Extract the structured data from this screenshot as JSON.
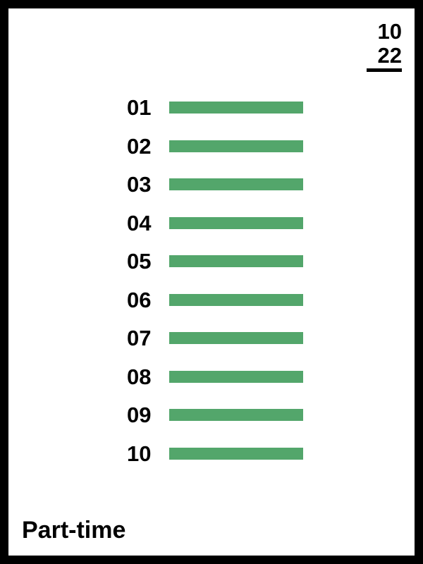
{
  "counter": {
    "current": "10",
    "total": "22"
  },
  "bar_color": "#53a66b",
  "items": [
    {
      "label": "01"
    },
    {
      "label": "02"
    },
    {
      "label": "03"
    },
    {
      "label": "04"
    },
    {
      "label": "05"
    },
    {
      "label": "06"
    },
    {
      "label": "07"
    },
    {
      "label": "08"
    },
    {
      "label": "09"
    },
    {
      "label": "10"
    }
  ],
  "footer": {
    "label": "Part-time"
  }
}
